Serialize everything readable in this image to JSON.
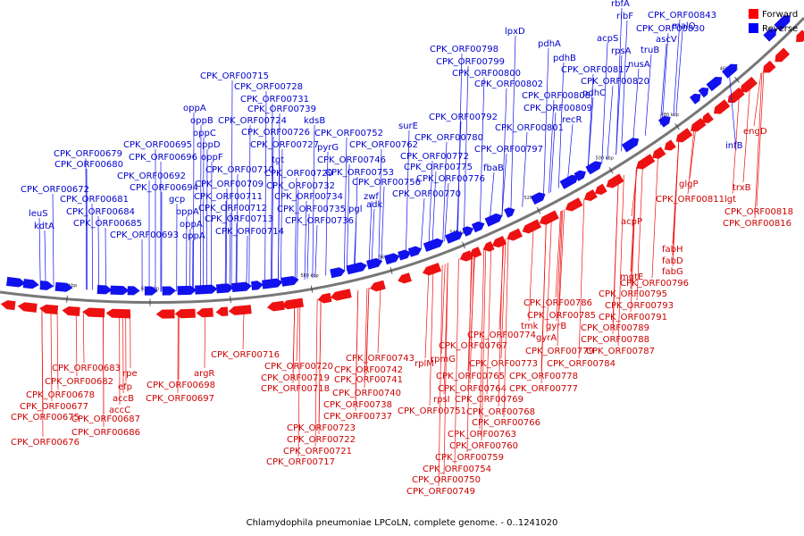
{
  "caption": "Chlamydophila pneumoniae LPCoLN, complete genome. - 0..1241020",
  "legend": [
    {
      "label": "Forward",
      "color": "#ff0000"
    },
    {
      "label": "Reverse",
      "color": "#0000ff"
    }
  ],
  "colors": {
    "forward": "#ee1111",
    "reverse": "#1111ee",
    "backbone": "#777777",
    "forward_text": "#cc0000",
    "reverse_text": "#0000cc"
  },
  "ticks": [
    "640 kbp",
    "620 kbp",
    "600 kbp",
    "580 kbp",
    "560 kbp",
    "540 kbp",
    "520 kbp",
    "500 kbp",
    "480 kbp",
    "460 kbp"
  ],
  "reverse_labels": [
    "rbfA",
    "ribF",
    "CPK_ORF00843",
    "CPK_ORF00830",
    "malQ",
    "ascV",
    "truB",
    "nusA",
    "rpsA",
    "acpS",
    "lpxD",
    "pdhA",
    "pdhB",
    "CPK_ORF00817",
    "CPK_ORF00820",
    "CPK_ORF00798",
    "CPK_ORF00799",
    "CPK_ORF00800",
    "CPK_ORF00802",
    "CPK_ORF00808",
    "CPK_ORF00809",
    "pdhC",
    "recR",
    "CPK_ORF00801",
    "CPK_ORF00792",
    "CPK_ORF00780",
    "CPK_ORF00797",
    "surE",
    "CPK_ORF00762",
    "CPK_ORF00772",
    "CPK_ORF00775",
    "CPK_ORF00776",
    "CPK_ORF00770",
    "fbaB",
    "infB",
    "CPK_ORF00715",
    "CPK_ORF00728",
    "CPK_ORF00731",
    "CPK_ORF00739",
    "kdsB",
    "CPK_ORF00752",
    "CPK_ORF00724",
    "CPK_ORF00726",
    "CPK_ORF00727",
    "pyrG",
    "CPK_ORF00746",
    "CPK_ORF00753",
    "CPK_ORF00756",
    "tgt",
    "CPK_ORF00729",
    "CPK_ORF00732",
    "CPK_ORF00734",
    "zwf",
    "CPK_ORF00735",
    "CPK_ORF00736",
    "pgl",
    "adk",
    "oppA",
    "oppB",
    "oppC",
    "oppD",
    "oppF",
    "CPK_ORF00695",
    "CPK_ORF00696",
    "CPK_ORF00692",
    "CPK_ORF00694",
    "CPK_ORF00710",
    "CPK_ORF00709",
    "CPK_ORF00711",
    "CPK_ORF00712",
    "CPK_ORF00713",
    "CPK_ORF00714",
    "gcp",
    "oppA",
    "oppA",
    "oppA",
    "CPK_ORF00693",
    "CPK_ORF00679",
    "CPK_ORF00680",
    "CPK_ORF00672",
    "CPK_ORF00681",
    "CPK_ORF00684",
    "CPK_ORF00685",
    "leuS",
    "kdtA"
  ],
  "forward_labels": [
    "engD",
    "trxB",
    "glgP",
    "CPK_ORF00811",
    "lgt",
    "CPK_ORF00818",
    "CPK_ORF00816",
    "acpP",
    "fabH",
    "fabD",
    "fabG",
    "mgtE",
    "CPK_ORF00796",
    "CPK_ORF00795",
    "CPK_ORF00793",
    "CPK_ORF00791",
    "CPK_ORF00786",
    "CPK_ORF00785",
    "gyrB",
    "tmk",
    "gyrA",
    "CPK_ORF00789",
    "CPK_ORF00788",
    "CPK_ORF00787",
    "CPK_ORF00774",
    "CPK_ORF00779",
    "CPK_ORF00784",
    "CPK_ORF00767",
    "rplM",
    "rpmG",
    "CPK_ORF00773",
    "CPK_ORF00778",
    "CPK_ORF00765",
    "CPK_ORF00777",
    "CPK_ORF00764",
    "CPK_ORF00769",
    "rpsI",
    "CPK_ORF00751",
    "CPK_ORF00768",
    "CPK_ORF00766",
    "CPK_ORF00763",
    "CPK_ORF00760",
    "CPK_ORF00759",
    "CPK_ORF00754",
    "CPK_ORF00750",
    "CPK_ORF00749",
    "CPK_ORF00743",
    "CPK_ORF00742",
    "CPK_ORF00741",
    "CPK_ORF00740",
    "CPK_ORF00738",
    "CPK_ORF00737",
    "CPK_ORF00716",
    "CPK_ORF00720",
    "CPK_ORF00719",
    "CPK_ORF00718",
    "CPK_ORF00723",
    "CPK_ORF00722",
    "CPK_ORF00721",
    "CPK_ORF00717",
    "argR",
    "CPK_ORF00698",
    "CPK_ORF00697",
    "rpe",
    "efp",
    "accB",
    "accC",
    "CPK_ORF00687",
    "CPK_ORF00686",
    "CPK_ORF00683",
    "CPK_ORF00682",
    "CPK_ORF00678",
    "CPK_ORF00677",
    "CPK_ORF00675",
    "CPK_ORF00676"
  ]
}
